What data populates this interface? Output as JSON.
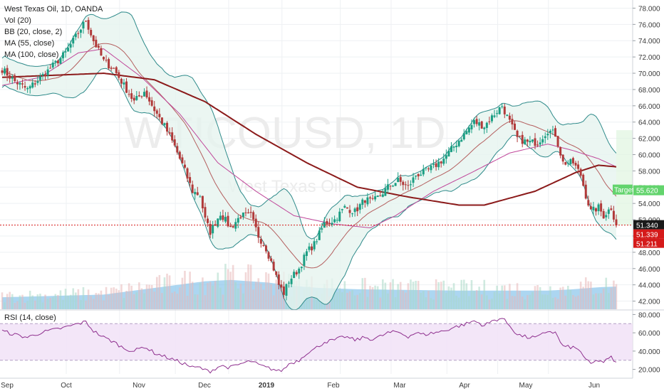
{
  "chart_data": {
    "type": "candlestick",
    "symbol": "WTICOUSD",
    "interval": "1D",
    "title": "West Texas Oil, 1D, OANDA",
    "watermark": {
      "main": "WTICOUSD, 1D",
      "sub": "West Texas Oil"
    },
    "indicators": [
      "Vol (20)",
      "BB (20, close, 2)",
      "MA (55, close)",
      "MA (100, close)"
    ],
    "rsi_label": "RSI (14, close)",
    "price_axis": {
      "ylim": [
        41.0,
        79.0
      ],
      "ticks": [
        "78.000",
        "76.000",
        "74.000",
        "72.000",
        "70.000",
        "68.000",
        "66.000",
        "64.000",
        "62.000",
        "60.000",
        "58.000",
        "56.000",
        "54.000",
        "52.000",
        "50.000",
        "48.000",
        "46.000",
        "44.000",
        "42.000"
      ]
    },
    "rsi_axis": {
      "ylim": [
        15,
        85
      ],
      "ticks": [
        "80.000",
        "60.000",
        "40.000",
        "20.000"
      ],
      "band": [
        30,
        70
      ]
    },
    "x_axis": {
      "labels": [
        "Sep",
        "Oct",
        "Nov",
        "Dec",
        "2019",
        "Feb",
        "Mar",
        "Apr",
        "May",
        "Jun"
      ]
    },
    "price_labels": {
      "target_tag": "Target",
      "target": "55.620",
      "last": "51.340",
      "l2": "51.339",
      "l3": "51.211"
    },
    "anchors": {
      "close": [
        [
          0,
          70.5
        ],
        [
          5,
          69.0
        ],
        [
          10,
          68.0
        ],
        [
          18,
          70.3
        ],
        [
          25,
          72.5
        ],
        [
          30,
          75.0
        ],
        [
          33,
          76.5
        ],
        [
          36,
          74.0
        ],
        [
          40,
          71.5
        ],
        [
          44,
          70.5
        ],
        [
          48,
          68.5
        ],
        [
          52,
          66.5
        ],
        [
          56,
          67.8
        ],
        [
          60,
          65.5
        ],
        [
          64,
          63.5
        ],
        [
          68,
          61.0
        ],
        [
          72,
          58.0
        ],
        [
          75,
          55.5
        ],
        [
          78,
          55.0
        ],
        [
          80,
          52.0
        ],
        [
          82,
          50.5
        ],
        [
          86,
          52.8
        ],
        [
          90,
          51.0
        ],
        [
          94,
          52.5
        ],
        [
          98,
          52.5
        ],
        [
          101,
          50.0
        ],
        [
          104,
          48.5
        ],
        [
          107,
          46.0
        ],
        [
          109,
          44.0
        ],
        [
          111,
          43.0
        ],
        [
          113,
          44.5
        ],
        [
          117,
          46.0
        ],
        [
          120,
          48.0
        ],
        [
          123,
          49.0
        ],
        [
          127,
          51.5
        ],
        [
          131,
          52.0
        ],
        [
          135,
          53.5
        ],
        [
          139,
          53.0
        ],
        [
          143,
          54.5
        ],
        [
          146,
          54.2
        ],
        [
          149,
          55.0
        ],
        [
          152,
          56.0
        ],
        [
          156,
          56.8
        ],
        [
          160,
          56.0
        ],
        [
          163,
          57.5
        ],
        [
          166,
          57.8
        ],
        [
          170,
          58.5
        ],
        [
          174,
          59.5
        ],
        [
          178,
          61.0
        ],
        [
          182,
          62.5
        ],
        [
          186,
          64.0
        ],
        [
          190,
          63.5
        ],
        [
          194,
          65.0
        ],
        [
          197,
          66.0
        ],
        [
          200,
          64.0
        ],
        [
          203,
          62.0
        ],
        [
          207,
          61.5
        ],
        [
          211,
          61.5
        ],
        [
          215,
          63.0
        ],
        [
          218,
          62.5
        ],
        [
          221,
          59.0
        ],
        [
          225,
          59.0
        ],
        [
          228,
          57.5
        ],
        [
          230,
          55.0
        ],
        [
          232,
          53.0
        ],
        [
          235,
          53.5
        ],
        [
          237,
          52.5
        ],
        [
          240,
          53.5
        ],
        [
          242,
          51.3
        ]
      ],
      "ma100": [
        [
          0,
          69.5
        ],
        [
          40,
          70.0
        ],
        [
          60,
          69.2
        ],
        [
          80,
          66.5
        ],
        [
          100,
          62.5
        ],
        [
          120,
          59.0
        ],
        [
          140,
          56.0
        ],
        [
          160,
          54.8
        ],
        [
          180,
          53.8
        ],
        [
          190,
          53.8
        ],
        [
          210,
          55.5
        ],
        [
          226,
          57.8
        ],
        [
          235,
          58.7
        ],
        [
          242,
          58.5
        ]
      ],
      "ma55": [
        [
          0,
          68.5
        ],
        [
          15,
          69.5
        ],
        [
          30,
          72.5
        ],
        [
          40,
          73.0
        ],
        [
          55,
          69.5
        ],
        [
          70,
          65.0
        ],
        [
          85,
          59.0
        ],
        [
          100,
          55.5
        ],
        [
          115,
          52.5
        ],
        [
          130,
          51.5
        ],
        [
          145,
          51.0
        ],
        [
          155,
          52.5
        ],
        [
          170,
          55.5
        ],
        [
          185,
          57.8
        ],
        [
          200,
          60.2
        ],
        [
          215,
          61.3
        ],
        [
          225,
          60.5
        ],
        [
          235,
          59.5
        ],
        [
          242,
          58.5
        ]
      ],
      "rsi": [
        [
          0,
          62
        ],
        [
          5,
          58
        ],
        [
          10,
          55
        ],
        [
          15,
          60
        ],
        [
          20,
          63
        ],
        [
          25,
          66
        ],
        [
          30,
          70
        ],
        [
          33,
          72
        ],
        [
          36,
          62
        ],
        [
          40,
          55
        ],
        [
          44,
          50
        ],
        [
          48,
          43
        ],
        [
          52,
          40
        ],
        [
          56,
          45
        ],
        [
          60,
          38
        ],
        [
          64,
          34
        ],
        [
          68,
          30
        ],
        [
          72,
          26
        ],
        [
          75,
          22
        ],
        [
          78,
          22
        ],
        [
          80,
          19
        ],
        [
          82,
          18
        ],
        [
          86,
          24
        ],
        [
          90,
          22
        ],
        [
          94,
          26
        ],
        [
          98,
          29
        ],
        [
          101,
          25
        ],
        [
          104,
          22
        ],
        [
          107,
          20
        ],
        [
          109,
          18
        ],
        [
          111,
          20
        ],
        [
          113,
          26
        ],
        [
          117,
          30
        ],
        [
          120,
          38
        ],
        [
          123,
          42
        ],
        [
          127,
          50
        ],
        [
          131,
          52
        ],
        [
          135,
          56
        ],
        [
          139,
          52
        ],
        [
          143,
          55
        ],
        [
          146,
          53
        ],
        [
          149,
          56
        ],
        [
          152,
          60
        ],
        [
          156,
          61
        ],
        [
          160,
          56
        ],
        [
          163,
          60
        ],
        [
          166,
          58
        ],
        [
          170,
          60
        ],
        [
          174,
          62
        ],
        [
          178,
          66
        ],
        [
          182,
          69
        ],
        [
          186,
          73
        ],
        [
          190,
          68
        ],
        [
          194,
          74
        ],
        [
          197,
          76
        ],
        [
          200,
          68
        ],
        [
          203,
          58
        ],
        [
          207,
          55
        ],
        [
          211,
          55
        ],
        [
          215,
          62
        ],
        [
          218,
          60
        ],
        [
          221,
          45
        ],
        [
          225,
          44
        ],
        [
          228,
          40
        ],
        [
          230,
          30
        ],
        [
          232,
          26
        ],
        [
          235,
          30
        ],
        [
          237,
          28
        ],
        [
          240,
          33
        ],
        [
          242,
          27
        ]
      ],
      "volume": [
        [
          0,
          18
        ],
        [
          40,
          22
        ],
        [
          60,
          32
        ],
        [
          80,
          42
        ],
        [
          90,
          44
        ],
        [
          105,
          40
        ],
        [
          115,
          35
        ],
        [
          125,
          32
        ],
        [
          140,
          30
        ],
        [
          160,
          29
        ],
        [
          180,
          28
        ],
        [
          200,
          28
        ],
        [
          215,
          28
        ],
        [
          225,
          30
        ],
        [
          235,
          33
        ],
        [
          242,
          34
        ]
      ]
    },
    "colors": {
      "up": "#1b9e83",
      "down": "#b13a3a",
      "ma100": "#8b1a1a",
      "ma55": "#c0479a",
      "bb_line": "#2e8a8a",
      "bb_fill": "#e6f4ef",
      "volume": "#90c8ec",
      "rsi": "#8e2f8e",
      "rsi_band": "#f1e2f7",
      "target": "#63d46d",
      "last": "#d51a1a"
    }
  }
}
